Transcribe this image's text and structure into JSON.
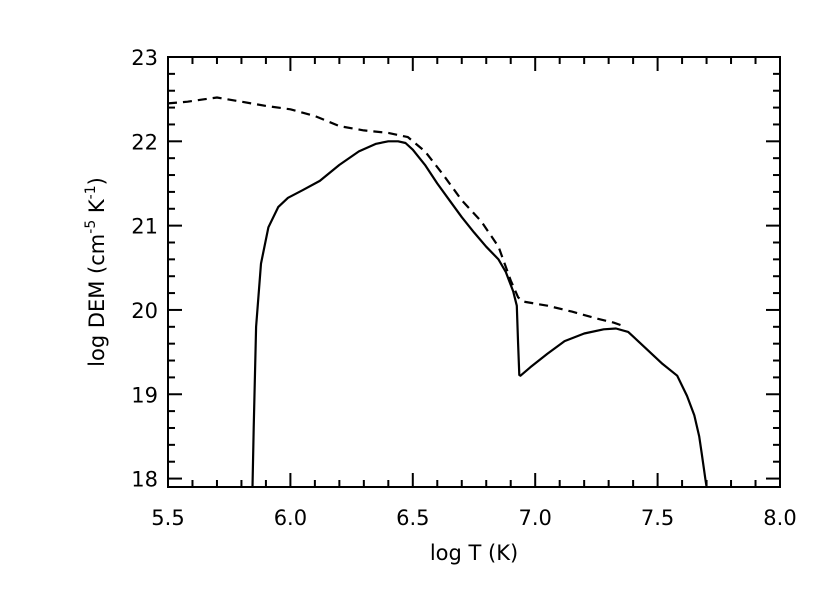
{
  "chart_data": {
    "type": "line",
    "title": "",
    "xlabel": "log T (K)",
    "ylabel": {
      "prefix": "log DEM (cm",
      "sup1": "-5",
      "mid": " K",
      "sup2": "-1",
      "suffix": ")"
    },
    "xlim": [
      5.5,
      8.0
    ],
    "ylim": [
      17.9,
      23.0
    ],
    "xticks": [
      "5.5",
      "6.0",
      "6.5",
      "7.0",
      "7.5",
      "8.0"
    ],
    "yticks": [
      "18",
      "19",
      "20",
      "21",
      "22",
      "23"
    ],
    "grid": false,
    "series": [
      {
        "style": "solid",
        "color": "#000000",
        "x": [
          5.845,
          5.85,
          5.86,
          5.88,
          5.91,
          5.95,
          5.99,
          6.05,
          6.12,
          6.2,
          6.28,
          6.35,
          6.4,
          6.44,
          6.47,
          6.5,
          6.55,
          6.6,
          6.65,
          6.7,
          6.75,
          6.8,
          6.85,
          6.88,
          6.91,
          6.925,
          6.93,
          6.935,
          6.94,
          6.98,
          7.05,
          7.12,
          7.2,
          7.28,
          7.33,
          7.38,
          7.45,
          7.52,
          7.58,
          7.62,
          7.65,
          7.67,
          7.68,
          7.69,
          7.695,
          7.7
        ],
        "y": [
          17.9,
          18.6,
          19.8,
          20.55,
          20.98,
          21.22,
          21.33,
          21.42,
          21.53,
          21.72,
          21.88,
          21.97,
          22.0,
          22.0,
          21.98,
          21.9,
          21.72,
          21.5,
          21.3,
          21.1,
          20.92,
          20.75,
          20.6,
          20.45,
          20.22,
          20.05,
          19.6,
          19.23,
          19.22,
          19.32,
          19.48,
          19.63,
          19.72,
          19.77,
          19.78,
          19.74,
          19.55,
          19.36,
          19.22,
          18.98,
          18.75,
          18.5,
          18.3,
          18.1,
          18.0,
          17.9
        ],
        "name": ""
      },
      {
        "style": "dashed",
        "color": "#000000",
        "x": [
          5.5,
          5.58,
          5.65,
          5.7,
          5.8,
          5.9,
          6.0,
          6.1,
          6.2,
          6.3,
          6.4,
          6.48,
          6.55,
          6.62,
          6.7,
          6.78,
          6.85,
          6.9,
          6.93,
          6.95,
          7.05,
          7.15,
          7.25,
          7.32,
          7.37
        ],
        "y": [
          22.45,
          22.47,
          22.5,
          22.52,
          22.47,
          22.42,
          22.38,
          22.3,
          22.18,
          22.13,
          22.1,
          22.05,
          21.88,
          21.62,
          21.3,
          21.05,
          20.75,
          20.35,
          20.15,
          20.1,
          20.05,
          19.98,
          19.9,
          19.85,
          19.8
        ],
        "name": ""
      }
    ]
  }
}
